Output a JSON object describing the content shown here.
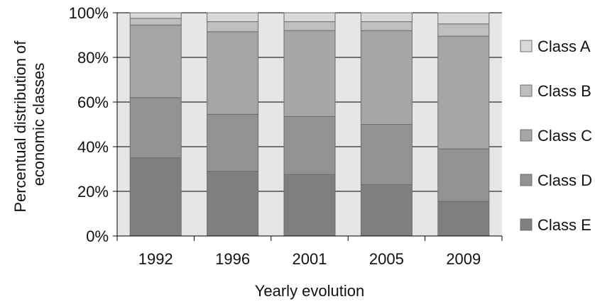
{
  "chart_data": {
    "type": "bar",
    "stacked": true,
    "percent_stacked": true,
    "categories": [
      "1992",
      "1996",
      "2001",
      "2005",
      "2009"
    ],
    "series": [
      {
        "name": "Class E",
        "color": "#7f7f7f",
        "values": [
          35,
          29,
          27.5,
          23,
          15.5
        ]
      },
      {
        "name": "Class D",
        "color": "#929292",
        "values": [
          27,
          25.5,
          26,
          27,
          23.5
        ]
      },
      {
        "name": "Class C",
        "color": "#a6a6a6",
        "values": [
          32.5,
          37,
          38.5,
          42,
          50.5
        ]
      },
      {
        "name": "Class B",
        "color": "#bfbfbf",
        "values": [
          3,
          4.5,
          4,
          4,
          5.5
        ]
      },
      {
        "name": "Class A",
        "color": "#d9d9d9",
        "values": [
          2.5,
          4,
          4,
          4,
          5
        ]
      }
    ],
    "y_ticks": [
      "0%",
      "20%",
      "40%",
      "60%",
      "80%",
      "100%"
    ],
    "ylim": [
      0,
      100
    ],
    "xlabel": "Yearly evolution",
    "ylabel_lines": [
      "Percentual distribution of",
      "economic classes"
    ],
    "legend_order": [
      "Class A",
      "Class B",
      "Class C",
      "Class D",
      "Class E"
    ],
    "legend_position": "right",
    "grid": true,
    "plot_background": "#e6e6e6"
  }
}
